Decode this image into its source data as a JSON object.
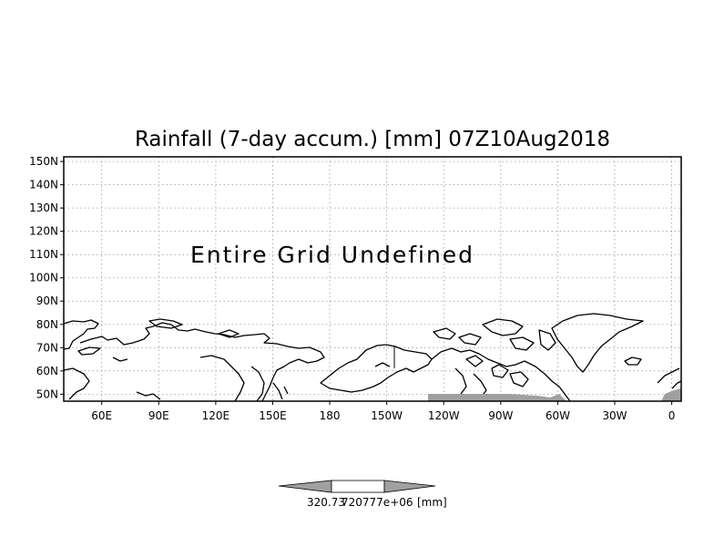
{
  "title": "Rainfall (7-day accum.) [mm] 07Z10Aug2018",
  "message": "Entire Grid Undefined",
  "map": {
    "projection": "latlon",
    "lon_range": [
      40,
      365
    ],
    "lat_range": [
      47,
      152
    ],
    "lat_ticks": [
      "150N",
      "140N",
      "130N",
      "120N",
      "110N",
      "100N",
      "90N",
      "80N",
      "70N",
      "60N",
      "50N"
    ],
    "lon_ticks": [
      "60E",
      "90E",
      "120E",
      "150E",
      "180",
      "150W",
      "120W",
      "90W",
      "60W",
      "30W",
      "0"
    ],
    "grid": "dotted",
    "coastlines": true,
    "land_color": "#ffffff",
    "masked_color": "#a0a0a0"
  },
  "colorbar": {
    "labels": [
      "320.73",
      "720777e+06",
      "[mm]"
    ],
    "colors": [
      "#a0a0a0",
      "#ffffff",
      "#a0a0a0"
    ]
  }
}
